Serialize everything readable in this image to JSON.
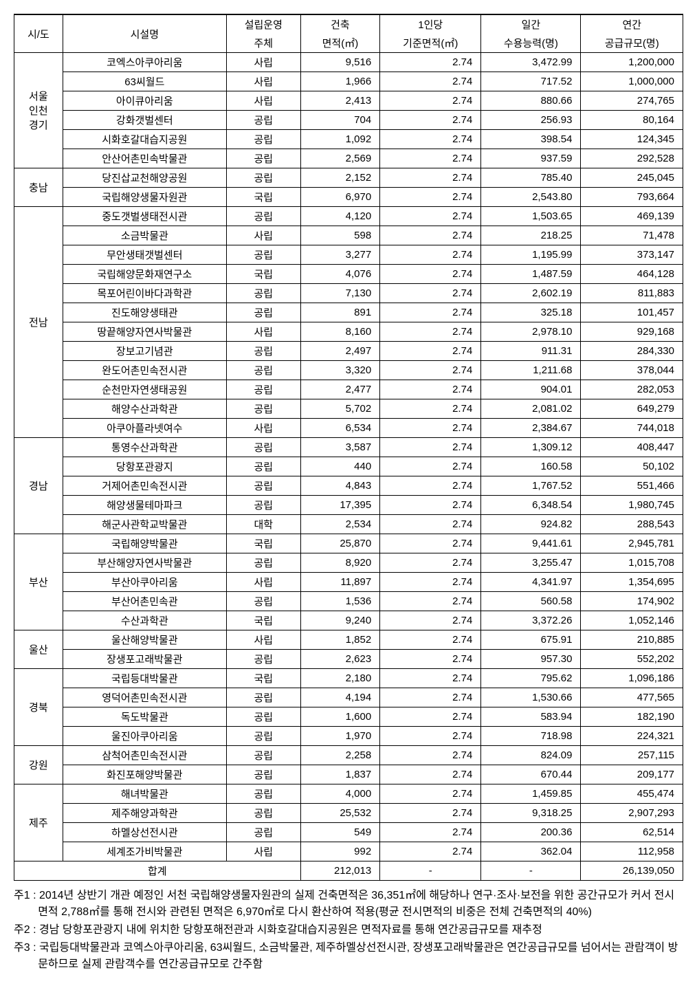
{
  "headers": {
    "region": "시/도",
    "facility": "시설명",
    "operator1": "설립운영",
    "operator2": "주체",
    "area1": "건축",
    "area2": "면적(㎡)",
    "perCapita1": "1인당",
    "perCapita2": "기준면적(㎡)",
    "daily1": "일간",
    "daily2": "수용능력(명)",
    "annual1": "연간",
    "annual2": "공급규모(명)"
  },
  "regions": [
    {
      "name": "서울\n인천\n경기",
      "rows": [
        {
          "facility": "코엑스아쿠아리움",
          "operator": "사립",
          "area": "9,516",
          "perCapita": "2.74",
          "daily": "3,472.99",
          "annual": "1,200,000"
        },
        {
          "facility": "63씨월드",
          "operator": "사립",
          "area": "1,966",
          "perCapita": "2.74",
          "daily": "717.52",
          "annual": "1,000,000"
        },
        {
          "facility": "아이큐아리움",
          "operator": "사립",
          "area": "2,413",
          "perCapita": "2.74",
          "daily": "880.66",
          "annual": "274,765"
        },
        {
          "facility": "강화갯벌센터",
          "operator": "공립",
          "area": "704",
          "perCapita": "2.74",
          "daily": "256.93",
          "annual": "80,164"
        },
        {
          "facility": "시화호갈대습지공원",
          "operator": "공립",
          "area": "1,092",
          "perCapita": "2.74",
          "daily": "398.54",
          "annual": "124,345"
        },
        {
          "facility": "안산어촌민속박물관",
          "operator": "공립",
          "area": "2,569",
          "perCapita": "2.74",
          "daily": "937.59",
          "annual": "292,528"
        }
      ]
    },
    {
      "name": "충남",
      "rows": [
        {
          "facility": "당진삽교천해양공원",
          "operator": "공립",
          "area": "2,152",
          "perCapita": "2.74",
          "daily": "785.40",
          "annual": "245,045"
        },
        {
          "facility": "국립해양생물자원관",
          "operator": "국립",
          "area": "6,970",
          "perCapita": "2.74",
          "daily": "2,543.80",
          "annual": "793,664"
        }
      ]
    },
    {
      "name": "전남",
      "rows": [
        {
          "facility": "중도갯벌생태전시관",
          "operator": "공립",
          "area": "4,120",
          "perCapita": "2.74",
          "daily": "1,503.65",
          "annual": "469,139"
        },
        {
          "facility": "소금박물관",
          "operator": "사립",
          "area": "598",
          "perCapita": "2.74",
          "daily": "218.25",
          "annual": "71,478"
        },
        {
          "facility": "무안생태갯벌센터",
          "operator": "공립",
          "area": "3,277",
          "perCapita": "2.74",
          "daily": "1,195.99",
          "annual": "373,147"
        },
        {
          "facility": "국립해양문화재연구소",
          "operator": "국립",
          "area": "4,076",
          "perCapita": "2.74",
          "daily": "1,487.59",
          "annual": "464,128"
        },
        {
          "facility": "목포어린이바다과학관",
          "operator": "공립",
          "area": "7,130",
          "perCapita": "2.74",
          "daily": "2,602.19",
          "annual": "811,883"
        },
        {
          "facility": "진도해양생태관",
          "operator": "공립",
          "area": "891",
          "perCapita": "2.74",
          "daily": "325.18",
          "annual": "101,457"
        },
        {
          "facility": "땅끝해양자연사박물관",
          "operator": "사립",
          "area": "8,160",
          "perCapita": "2.74",
          "daily": "2,978.10",
          "annual": "929,168"
        },
        {
          "facility": "장보고기념관",
          "operator": "공립",
          "area": "2,497",
          "perCapita": "2.74",
          "daily": "911.31",
          "annual": "284,330"
        },
        {
          "facility": "완도어촌민속전시관",
          "operator": "공립",
          "area": "3,320",
          "perCapita": "2.74",
          "daily": "1,211.68",
          "annual": "378,044"
        },
        {
          "facility": "순천만자연생태공원",
          "operator": "공립",
          "area": "2,477",
          "perCapita": "2.74",
          "daily": "904.01",
          "annual": "282,053"
        },
        {
          "facility": "해양수산과학관",
          "operator": "공립",
          "area": "5,702",
          "perCapita": "2.74",
          "daily": "2,081.02",
          "annual": "649,279"
        },
        {
          "facility": "아쿠아플라넷여수",
          "operator": "사립",
          "area": "6,534",
          "perCapita": "2.74",
          "daily": "2,384.67",
          "annual": "744,018"
        }
      ]
    },
    {
      "name": "경남",
      "rows": [
        {
          "facility": "통영수산과학관",
          "operator": "공립",
          "area": "3,587",
          "perCapita": "2.74",
          "daily": "1,309.12",
          "annual": "408,447"
        },
        {
          "facility": "당항포관광지",
          "operator": "공립",
          "area": "440",
          "perCapita": "2.74",
          "daily": "160.58",
          "annual": "50,102"
        },
        {
          "facility": "거제어촌민속전시관",
          "operator": "공립",
          "area": "4,843",
          "perCapita": "2.74",
          "daily": "1,767.52",
          "annual": "551,466"
        },
        {
          "facility": "해양생물테마파크",
          "operator": "공립",
          "area": "17,395",
          "perCapita": "2.74",
          "daily": "6,348.54",
          "annual": "1,980,745"
        },
        {
          "facility": "해군사관학교박물관",
          "operator": "대학",
          "area": "2,534",
          "perCapita": "2.74",
          "daily": "924.82",
          "annual": "288,543"
        }
      ]
    },
    {
      "name": "부산",
      "rows": [
        {
          "facility": "국립해양박물관",
          "operator": "국립",
          "area": "25,870",
          "perCapita": "2.74",
          "daily": "9,441.61",
          "annual": "2,945,781"
        },
        {
          "facility": "부산해양자연사박물관",
          "operator": "공립",
          "area": "8,920",
          "perCapita": "2.74",
          "daily": "3,255.47",
          "annual": "1,015,708"
        },
        {
          "facility": "부산아쿠아리움",
          "operator": "사립",
          "area": "11,897",
          "perCapita": "2.74",
          "daily": "4,341.97",
          "annual": "1,354,695"
        },
        {
          "facility": "부산어촌민속관",
          "operator": "공립",
          "area": "1,536",
          "perCapita": "2.74",
          "daily": "560.58",
          "annual": "174,902"
        },
        {
          "facility": "수산과학관",
          "operator": "국립",
          "area": "9,240",
          "perCapita": "2.74",
          "daily": "3,372.26",
          "annual": "1,052,146"
        }
      ]
    },
    {
      "name": "울산",
      "rows": [
        {
          "facility": "울산해양박물관",
          "operator": "사립",
          "area": "1,852",
          "perCapita": "2.74",
          "daily": "675.91",
          "annual": "210,885"
        },
        {
          "facility": "장생포고래박물관",
          "operator": "공립",
          "area": "2,623",
          "perCapita": "2.74",
          "daily": "957.30",
          "annual": "552,202"
        }
      ]
    },
    {
      "name": "경북",
      "rows": [
        {
          "facility": "국립등대박물관",
          "operator": "국립",
          "area": "2,180",
          "perCapita": "2.74",
          "daily": "795.62",
          "annual": "1,096,186"
        },
        {
          "facility": "영덕어촌민속전시관",
          "operator": "공립",
          "area": "4,194",
          "perCapita": "2.74",
          "daily": "1,530.66",
          "annual": "477,565"
        },
        {
          "facility": "독도박물관",
          "operator": "공립",
          "area": "1,600",
          "perCapita": "2.74",
          "daily": "583.94",
          "annual": "182,190"
        },
        {
          "facility": "울진아쿠아리움",
          "operator": "공립",
          "area": "1,970",
          "perCapita": "2.74",
          "daily": "718.98",
          "annual": "224,321"
        }
      ]
    },
    {
      "name": "강원",
      "rows": [
        {
          "facility": "삼척어촌민속전시관",
          "operator": "공립",
          "area": "2,258",
          "perCapita": "2.74",
          "daily": "824.09",
          "annual": "257,115"
        },
        {
          "facility": "화진포해양박물관",
          "operator": "공립",
          "area": "1,837",
          "perCapita": "2.74",
          "daily": "670.44",
          "annual": "209,177"
        }
      ]
    },
    {
      "name": "제주",
      "rows": [
        {
          "facility": "해녀박물관",
          "operator": "공립",
          "area": "4,000",
          "perCapita": "2.74",
          "daily": "1,459.85",
          "annual": "455,474"
        },
        {
          "facility": "제주해양과학관",
          "operator": "공립",
          "area": "25,532",
          "perCapita": "2.74",
          "daily": "9,318.25",
          "annual": "2,907,293"
        },
        {
          "facility": "하멜상선전시관",
          "operator": "공립",
          "area": "549",
          "perCapita": "2.74",
          "daily": "200.36",
          "annual": "62,514"
        },
        {
          "facility": "세계조가비박물관",
          "operator": "사립",
          "area": "992",
          "perCapita": "2.74",
          "daily": "362.04",
          "annual": "112,958"
        }
      ]
    }
  ],
  "total": {
    "label": "합계",
    "area": "212,013",
    "perCapita": "-",
    "daily": "-",
    "annual": "26,139,050"
  },
  "notes": [
    "주1 : 2014년 상반기 개관 예정인 서천 국립해양생물자원관의 실제 건축면적은 36,351㎡에 해당하나 연구·조사·보전을 위한 공간규모가 커서 전시면적 2,788㎡를 통해 전시와 관련된 면적은 6,970㎡로 다시 환산하여 적용(평균 전시면적의 비중은 전체 건축면적의 40%)",
    "주2 : 경남 당항포관광지 내에 위치한 당항포해전관과 시화호갈대습지공원은 면적자료를 통해 연간공급규모를 재추정",
    "주3 : 국립등대박물관과 코엑스아쿠아리움, 63씨월드, 소금박물관, 제주하멜상선전시관, 장생포고래박물관은 연간공급규모를 넘어서는 관람객이 방문하므로 실제 관람객수를 연간공급규모로 간주함"
  ]
}
